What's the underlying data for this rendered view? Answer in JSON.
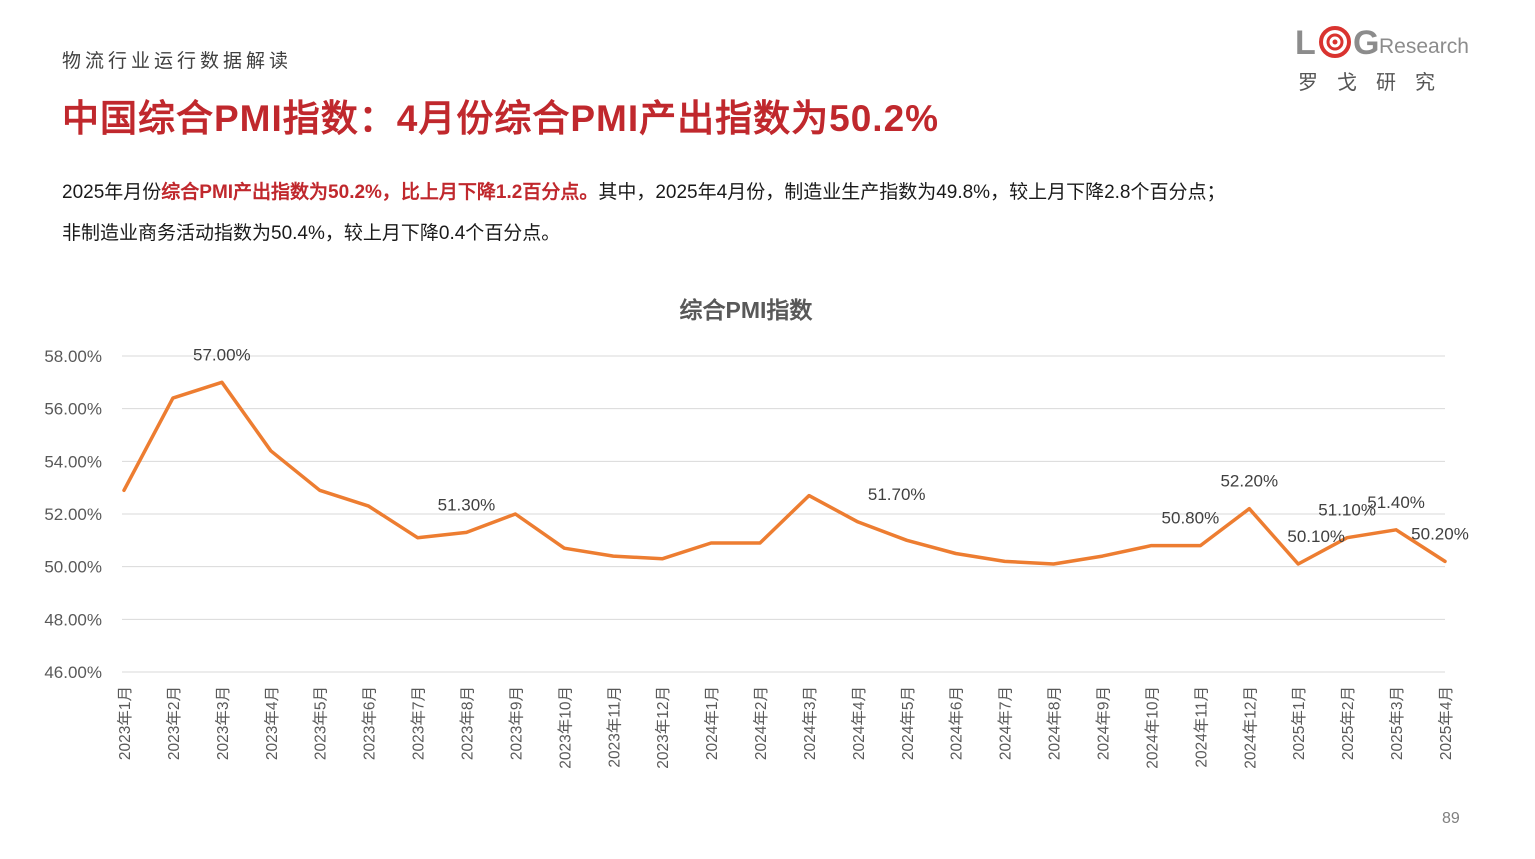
{
  "header": {
    "section_label": "物流行业运行数据解读",
    "title": "中国综合PMI指数：4月份综合PMI产出指数为50.2%"
  },
  "logo": {
    "letters": [
      "L",
      "G"
    ],
    "suffix": "Research",
    "chinese": "罗戈研究",
    "accent_color": "#d9332f",
    "gray_color": "#8c8c8c"
  },
  "summary": {
    "p1_pre": "2025年月份",
    "p1_highlight": "综合PMI产出指数为50.2%，比上月下降1.2百分点。",
    "p1_post": "其中，2025年4月份，制造业生产指数为49.8%，较上月下降2.8个百分点；",
    "p2": "非制造业商务活动指数为50.4%，较上月下降0.4个百分点。"
  },
  "chart_data": {
    "type": "line",
    "title": "综合PMI指数",
    "categories": [
      "2023年1月",
      "2023年2月",
      "2023年3月",
      "2023年4月",
      "2023年5月",
      "2023年6月",
      "2023年7月",
      "2023年8月",
      "2023年9月",
      "2023年10月",
      "2023年11月",
      "2023年12月",
      "2024年1月",
      "2024年2月",
      "2024年3月",
      "2024年4月",
      "2024年5月",
      "2024年6月",
      "2024年7月",
      "2024年8月",
      "2024年9月",
      "2024年10月",
      "2024年11月",
      "2024年12月",
      "2025年1月",
      "2025年2月",
      "2025年3月",
      "2025年4月"
    ],
    "series": [
      {
        "values": [
          52.9,
          56.4,
          57.0,
          54.4,
          52.9,
          52.3,
          51.1,
          51.3,
          52.0,
          50.7,
          50.4,
          50.3,
          50.9,
          50.9,
          52.7,
          51.7,
          51.0,
          50.5,
          50.2,
          50.1,
          50.4,
          50.8,
          50.8,
          52.2,
          50.1,
          51.1,
          51.4,
          50.2
        ]
      }
    ],
    "data_labels": [
      {
        "index": 2,
        "text": "57.00%"
      },
      {
        "index": 7,
        "text": "51.30%"
      },
      {
        "index": 15,
        "text": "51.70%"
      },
      {
        "index": 22,
        "text": "50.80%"
      },
      {
        "index": 23,
        "text": "52.20%"
      },
      {
        "index": 24,
        "text": "50.10%"
      },
      {
        "index": 25,
        "text": "51.10%"
      },
      {
        "index": 26,
        "text": "51.40%"
      },
      {
        "index": 27,
        "text": "50.20%"
      }
    ],
    "y_ticks": [
      "46.00%",
      "48.00%",
      "50.00%",
      "52.00%",
      "54.00%",
      "56.00%",
      "58.00%"
    ],
    "ylim": [
      46,
      58
    ],
    "grid": true,
    "line_color": "#ed7d31"
  },
  "page_number": "89"
}
